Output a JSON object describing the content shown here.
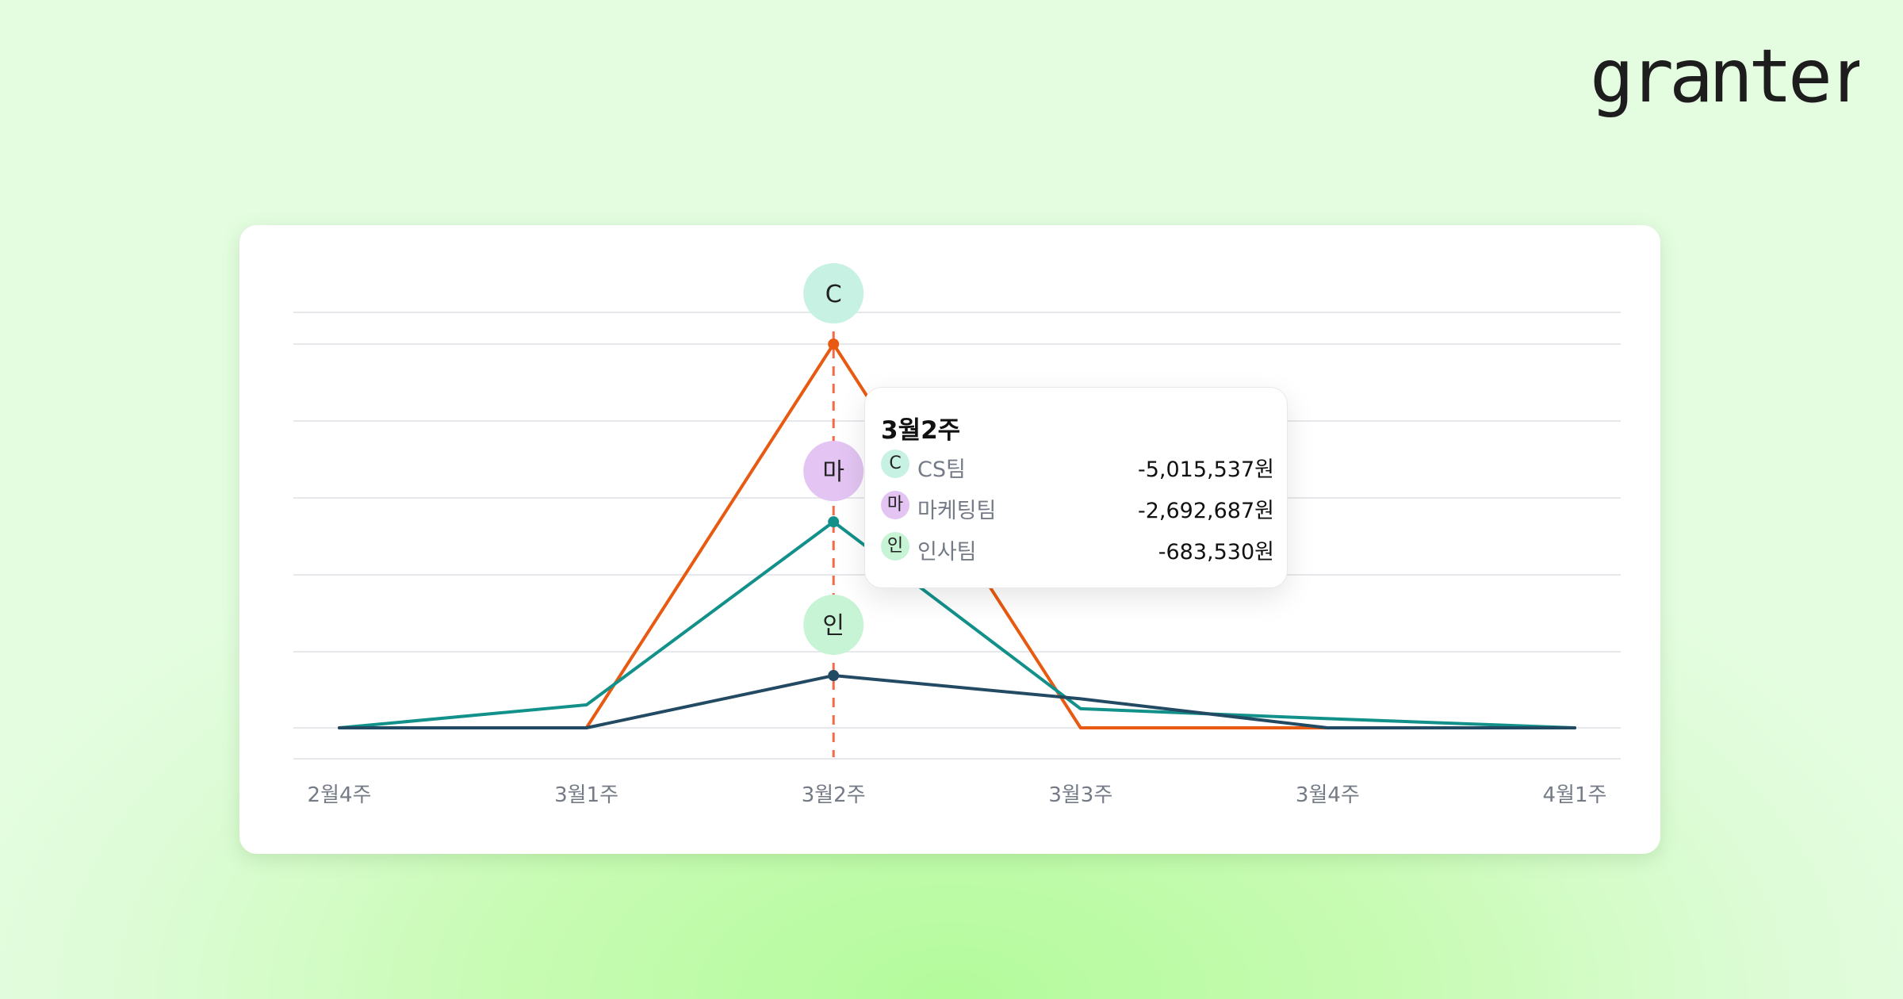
{
  "brand": {
    "logo_text": "granter"
  },
  "chart_data": {
    "type": "line",
    "categories": [
      "2월4주",
      "3월1주",
      "3월2주",
      "3월3주",
      "3월4주",
      "4월1주"
    ],
    "ylim": [
      -5500000,
      500000
    ],
    "grid": true,
    "series": [
      {
        "name": "CS팀",
        "color": "#e85a12",
        "values": [
          0,
          0,
          -5015537,
          0,
          0,
          0
        ]
      },
      {
        "name": "마케팅팀",
        "color": "#12918a",
        "values": [
          0,
          -300000,
          -2692687,
          -250000,
          -120000,
          0
        ]
      },
      {
        "name": "인사팀",
        "color": "#224a63",
        "values": [
          0,
          0,
          -683530,
          -380000,
          0,
          0
        ]
      }
    ],
    "highlight_index": 2,
    "badges": [
      {
        "label": "C",
        "color": "#c6f1e3",
        "series": 0
      },
      {
        "label": "마",
        "color": "#e3c4f2",
        "series": 1
      },
      {
        "label": "인",
        "color": "#c7f4d5",
        "series": 2
      }
    ],
    "tooltip": {
      "title": "3월2주",
      "rows": [
        {
          "badge": "C",
          "badge_color": "#c6f1e3",
          "name": "CS팀",
          "value": "-5,015,537원"
        },
        {
          "badge": "마",
          "badge_color": "#e3c4f2",
          "name": "마케팅팀",
          "value": "-2,692,687원"
        },
        {
          "badge": "인",
          "badge_color": "#c7f4d5",
          "name": "인사팀",
          "value": "-683,530원"
        }
      ]
    }
  }
}
